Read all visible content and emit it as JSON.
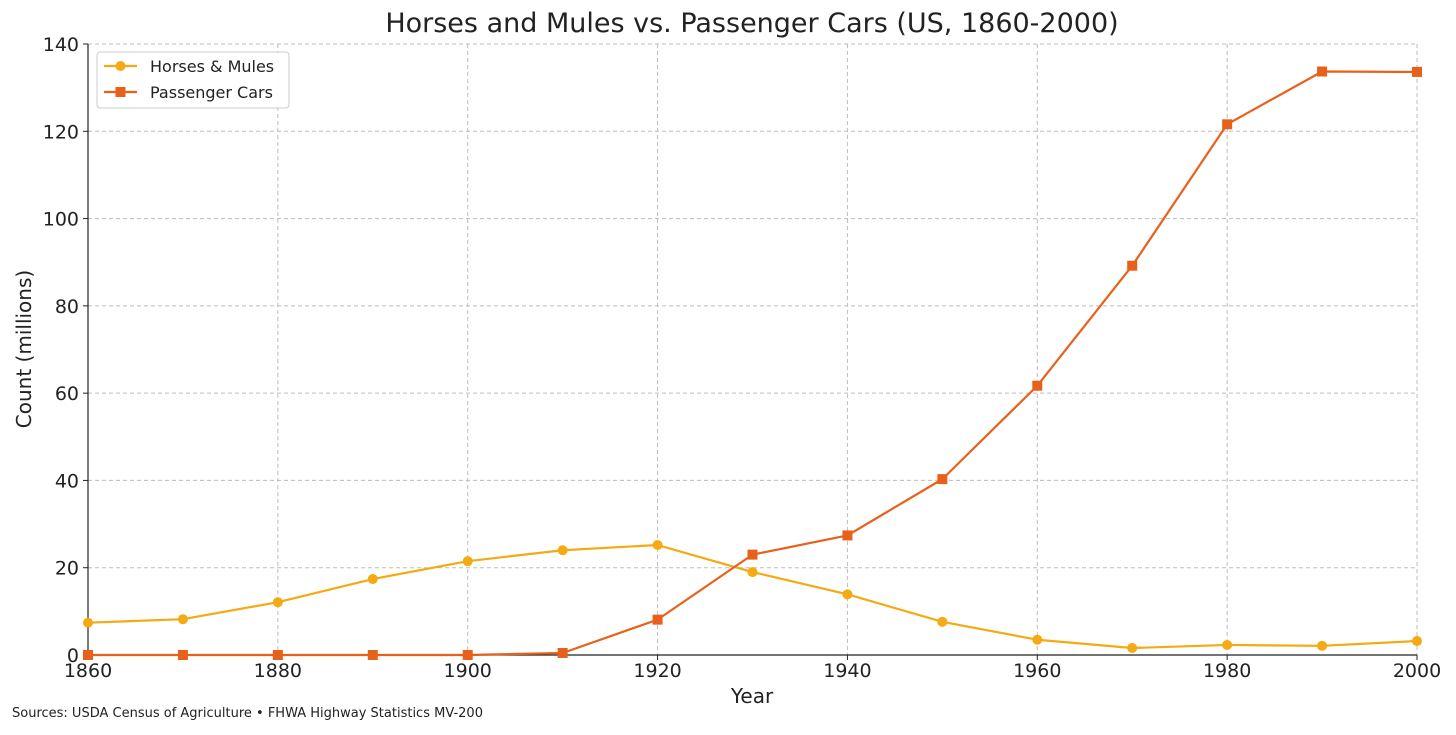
{
  "chart_data": {
    "type": "line",
    "title": "Horses and Mules vs. Passenger Cars (US, 1860-2000)",
    "xlabel": "Year",
    "ylabel": "Count (millions)",
    "x": [
      1860,
      1870,
      1880,
      1890,
      1900,
      1910,
      1920,
      1930,
      1940,
      1950,
      1960,
      1970,
      1980,
      1990,
      2000
    ],
    "xlim": [
      1860,
      2000
    ],
    "ylim": [
      0,
      140
    ],
    "xticks": [
      "1860",
      "1880",
      "1900",
      "1920",
      "1940",
      "1960",
      "1980",
      "2000"
    ],
    "yticks": [
      "0",
      "20",
      "40",
      "60",
      "80",
      "100",
      "120",
      "140"
    ],
    "grid": true,
    "legend_position": "top-left",
    "series": [
      {
        "name": "Horses & Mules",
        "color": "#f5a912",
        "marker": "circle",
        "values": [
          7.4,
          8.2,
          12.1,
          17.4,
          21.5,
          24.0,
          25.2,
          19.0,
          13.9,
          7.6,
          3.5,
          1.6,
          2.3,
          2.1,
          3.2
        ]
      },
      {
        "name": "Passenger Cars",
        "color": "#e8611a",
        "marker": "square",
        "values": [
          0,
          0,
          0,
          0,
          0.008,
          0.46,
          8.1,
          23.0,
          27.4,
          40.3,
          61.7,
          89.2,
          121.6,
          133.7,
          133.6
        ]
      }
    ],
    "source": "Sources: USDA Census of Agriculture • FHWA Highway Statistics MV-200"
  }
}
